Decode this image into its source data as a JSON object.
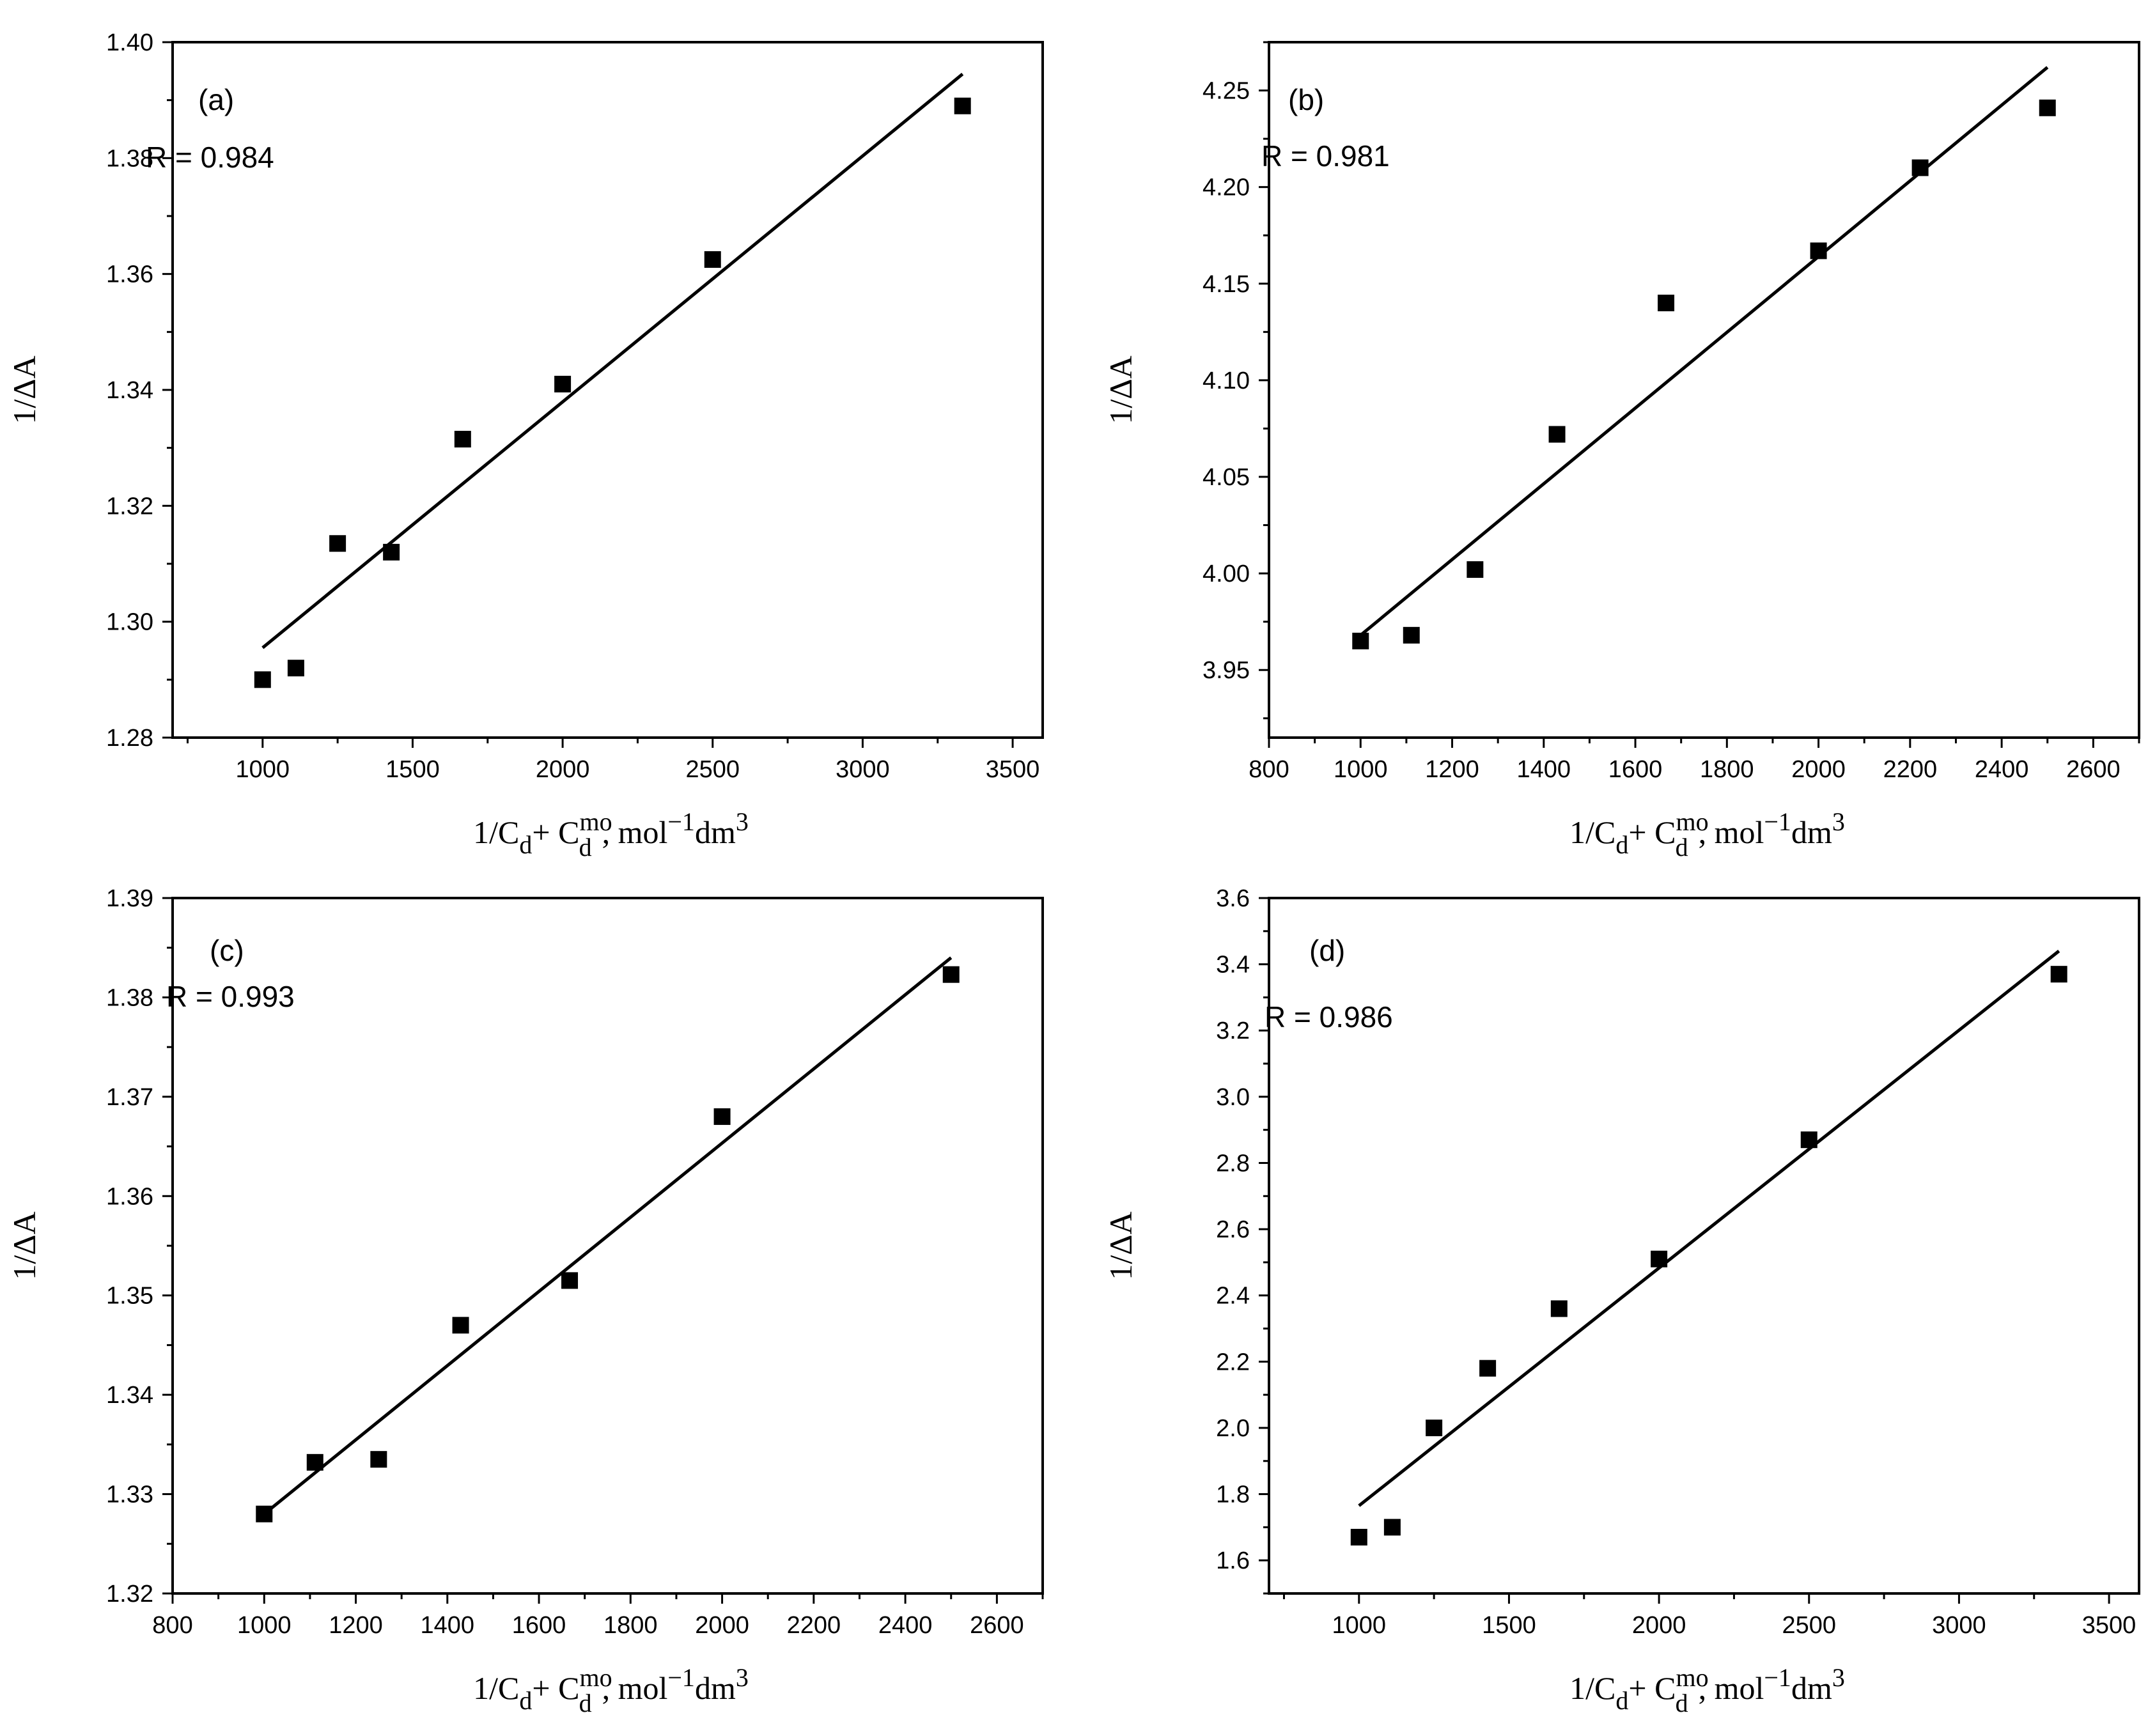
{
  "figure": {
    "ylabel": "1/ΔA",
    "xlabel": {
      "main": "1/C",
      "sub1": "d",
      "plus": "+ C",
      "sup_mo": "mo",
      "sub2": "d",
      "units": ", mol",
      "sup_neg1": "−1",
      "dm": "dm",
      "sup3": "3"
    }
  },
  "chart_data": [
    {
      "type": "scatter",
      "panel_label": "(a)",
      "r_text": "R = 0.984",
      "xlim": [
        700,
        3600
      ],
      "ylim": [
        1.28,
        1.4
      ],
      "xticks": [
        1000,
        1500,
        2000,
        2500,
        3000,
        3500
      ],
      "yticks": [
        1.28,
        1.3,
        1.32,
        1.34,
        1.36,
        1.38,
        1.4
      ],
      "ydecimals": 2,
      "points": {
        "x": [
          1000,
          1111,
          1250,
          1429,
          1667,
          2000,
          2500,
          3333
        ],
        "y": [
          1.29,
          1.292,
          1.3135,
          1.312,
          1.3315,
          1.341,
          1.3625,
          1.389
        ]
      },
      "fit_line": {
        "x": [
          1000,
          3333
        ],
        "y": [
          1.2955,
          1.3945
        ]
      }
    },
    {
      "type": "scatter",
      "panel_label": "(b)",
      "r_text": "R = 0.981",
      "xlim": [
        800,
        2700
      ],
      "ylim": [
        3.915,
        4.275
      ],
      "xticks": [
        800,
        1000,
        1200,
        1400,
        1600,
        1800,
        2000,
        2200,
        2400,
        2600
      ],
      "yticks": [
        3.95,
        4.0,
        4.05,
        4.1,
        4.15,
        4.2,
        4.25
      ],
      "ydecimals": 2,
      "points": {
        "x": [
          1000,
          1111,
          1250,
          1429,
          1667,
          2000,
          2222,
          2500
        ],
        "y": [
          3.965,
          3.968,
          4.002,
          4.072,
          4.14,
          4.167,
          4.21,
          4.241
        ]
      },
      "fit_line": {
        "x": [
          1000,
          2500
        ],
        "y": [
          3.968,
          4.262
        ]
      }
    },
    {
      "type": "scatter",
      "panel_label": "(c)",
      "r_text": "R = 0.993",
      "xlim": [
        800,
        2700
      ],
      "ylim": [
        1.32,
        1.39
      ],
      "xticks": [
        800,
        1000,
        1200,
        1400,
        1600,
        1800,
        2000,
        2200,
        2400,
        2600
      ],
      "yticks": [
        1.32,
        1.33,
        1.34,
        1.35,
        1.36,
        1.37,
        1.38,
        1.39
      ],
      "ydecimals": 2,
      "points": {
        "x": [
          1000,
          1111,
          1250,
          1429,
          1667,
          2000,
          2500
        ],
        "y": [
          1.328,
          1.3332,
          1.3335,
          1.347,
          1.3515,
          1.368,
          1.3823
        ]
      },
      "fit_line": {
        "x": [
          1000,
          2500
        ],
        "y": [
          1.328,
          1.384
        ]
      }
    },
    {
      "type": "scatter",
      "panel_label": "(d)",
      "r_text": "R = 0.986",
      "xlim": [
        700,
        3600
      ],
      "ylim": [
        1.5,
        3.6
      ],
      "xticks": [
        1000,
        1500,
        2000,
        2500,
        3000,
        3500
      ],
      "yticks": [
        1.6,
        1.8,
        2.0,
        2.2,
        2.4,
        2.6,
        2.8,
        3.0,
        3.2,
        3.4,
        3.6
      ],
      "ydecimals": 1,
      "points": {
        "x": [
          1000,
          1111,
          1250,
          1429,
          1667,
          2000,
          2500,
          3333
        ],
        "y": [
          1.67,
          1.7,
          2.0,
          2.18,
          2.36,
          2.51,
          2.87,
          3.37
        ]
      },
      "fit_line": {
        "x": [
          1000,
          3333
        ],
        "y": [
          1.765,
          3.44
        ]
      }
    }
  ]
}
